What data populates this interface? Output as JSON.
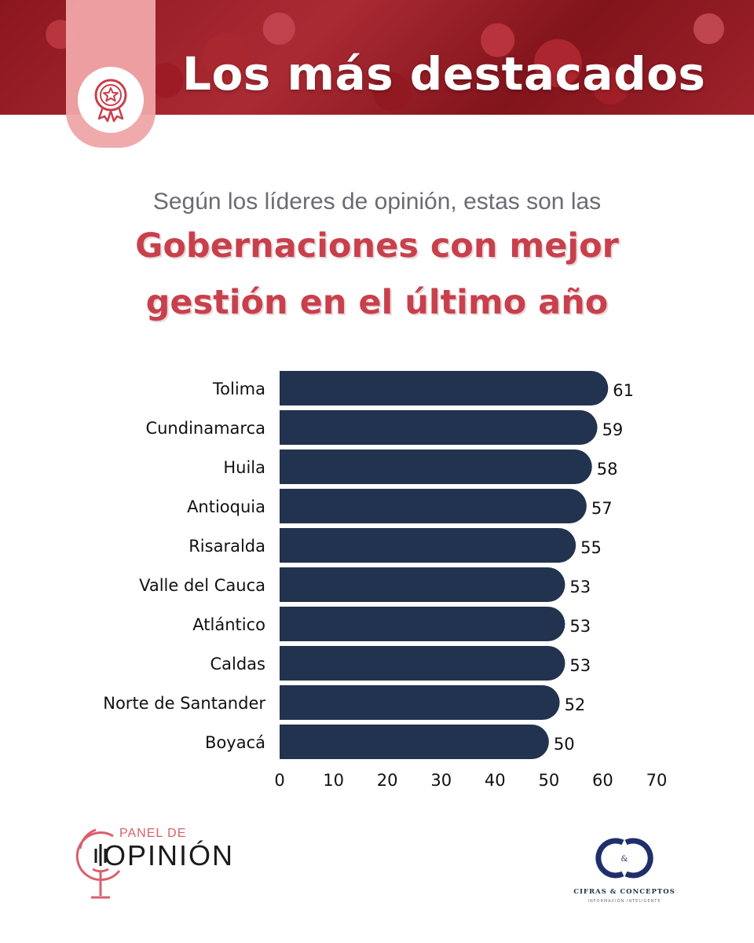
{
  "header": {
    "title": "Los más destacados",
    "badge_icon": "award-ribbon-icon",
    "accent": "#c8404c"
  },
  "intro": {
    "subtitle": "Según los líderes de opinión, estas son las",
    "headline_line1": "Gobernaciones con mejor",
    "headline_line2": "gestión en el último año"
  },
  "chart_data": {
    "type": "bar",
    "orientation": "horizontal",
    "categories": [
      "Tolima",
      "Cundinamarca",
      "Huila",
      "Antioquia",
      "Risaralda",
      "Valle del Cauca",
      "Atlántico",
      "Caldas",
      "Norte de Santander",
      "Boyacá"
    ],
    "values": [
      61,
      59,
      58,
      57,
      55,
      53,
      53,
      53,
      52,
      50
    ],
    "xlim": [
      0,
      70
    ],
    "xticks": [
      "0",
      "10",
      "20",
      "30",
      "40",
      "50",
      "60",
      "70"
    ],
    "bar_color": "#22334f",
    "data_labels": true,
    "grid": false
  },
  "footer": {
    "left_logo": {
      "small_text": "PANEL DE",
      "big_text": "OPINIÓN",
      "icon": "microphone-icon"
    },
    "right_logo": {
      "monogram": "C&C",
      "name": "CIFRAS & CONCEPTOS",
      "tagline": "INFORMACIÓN INTELIGENTE"
    }
  }
}
